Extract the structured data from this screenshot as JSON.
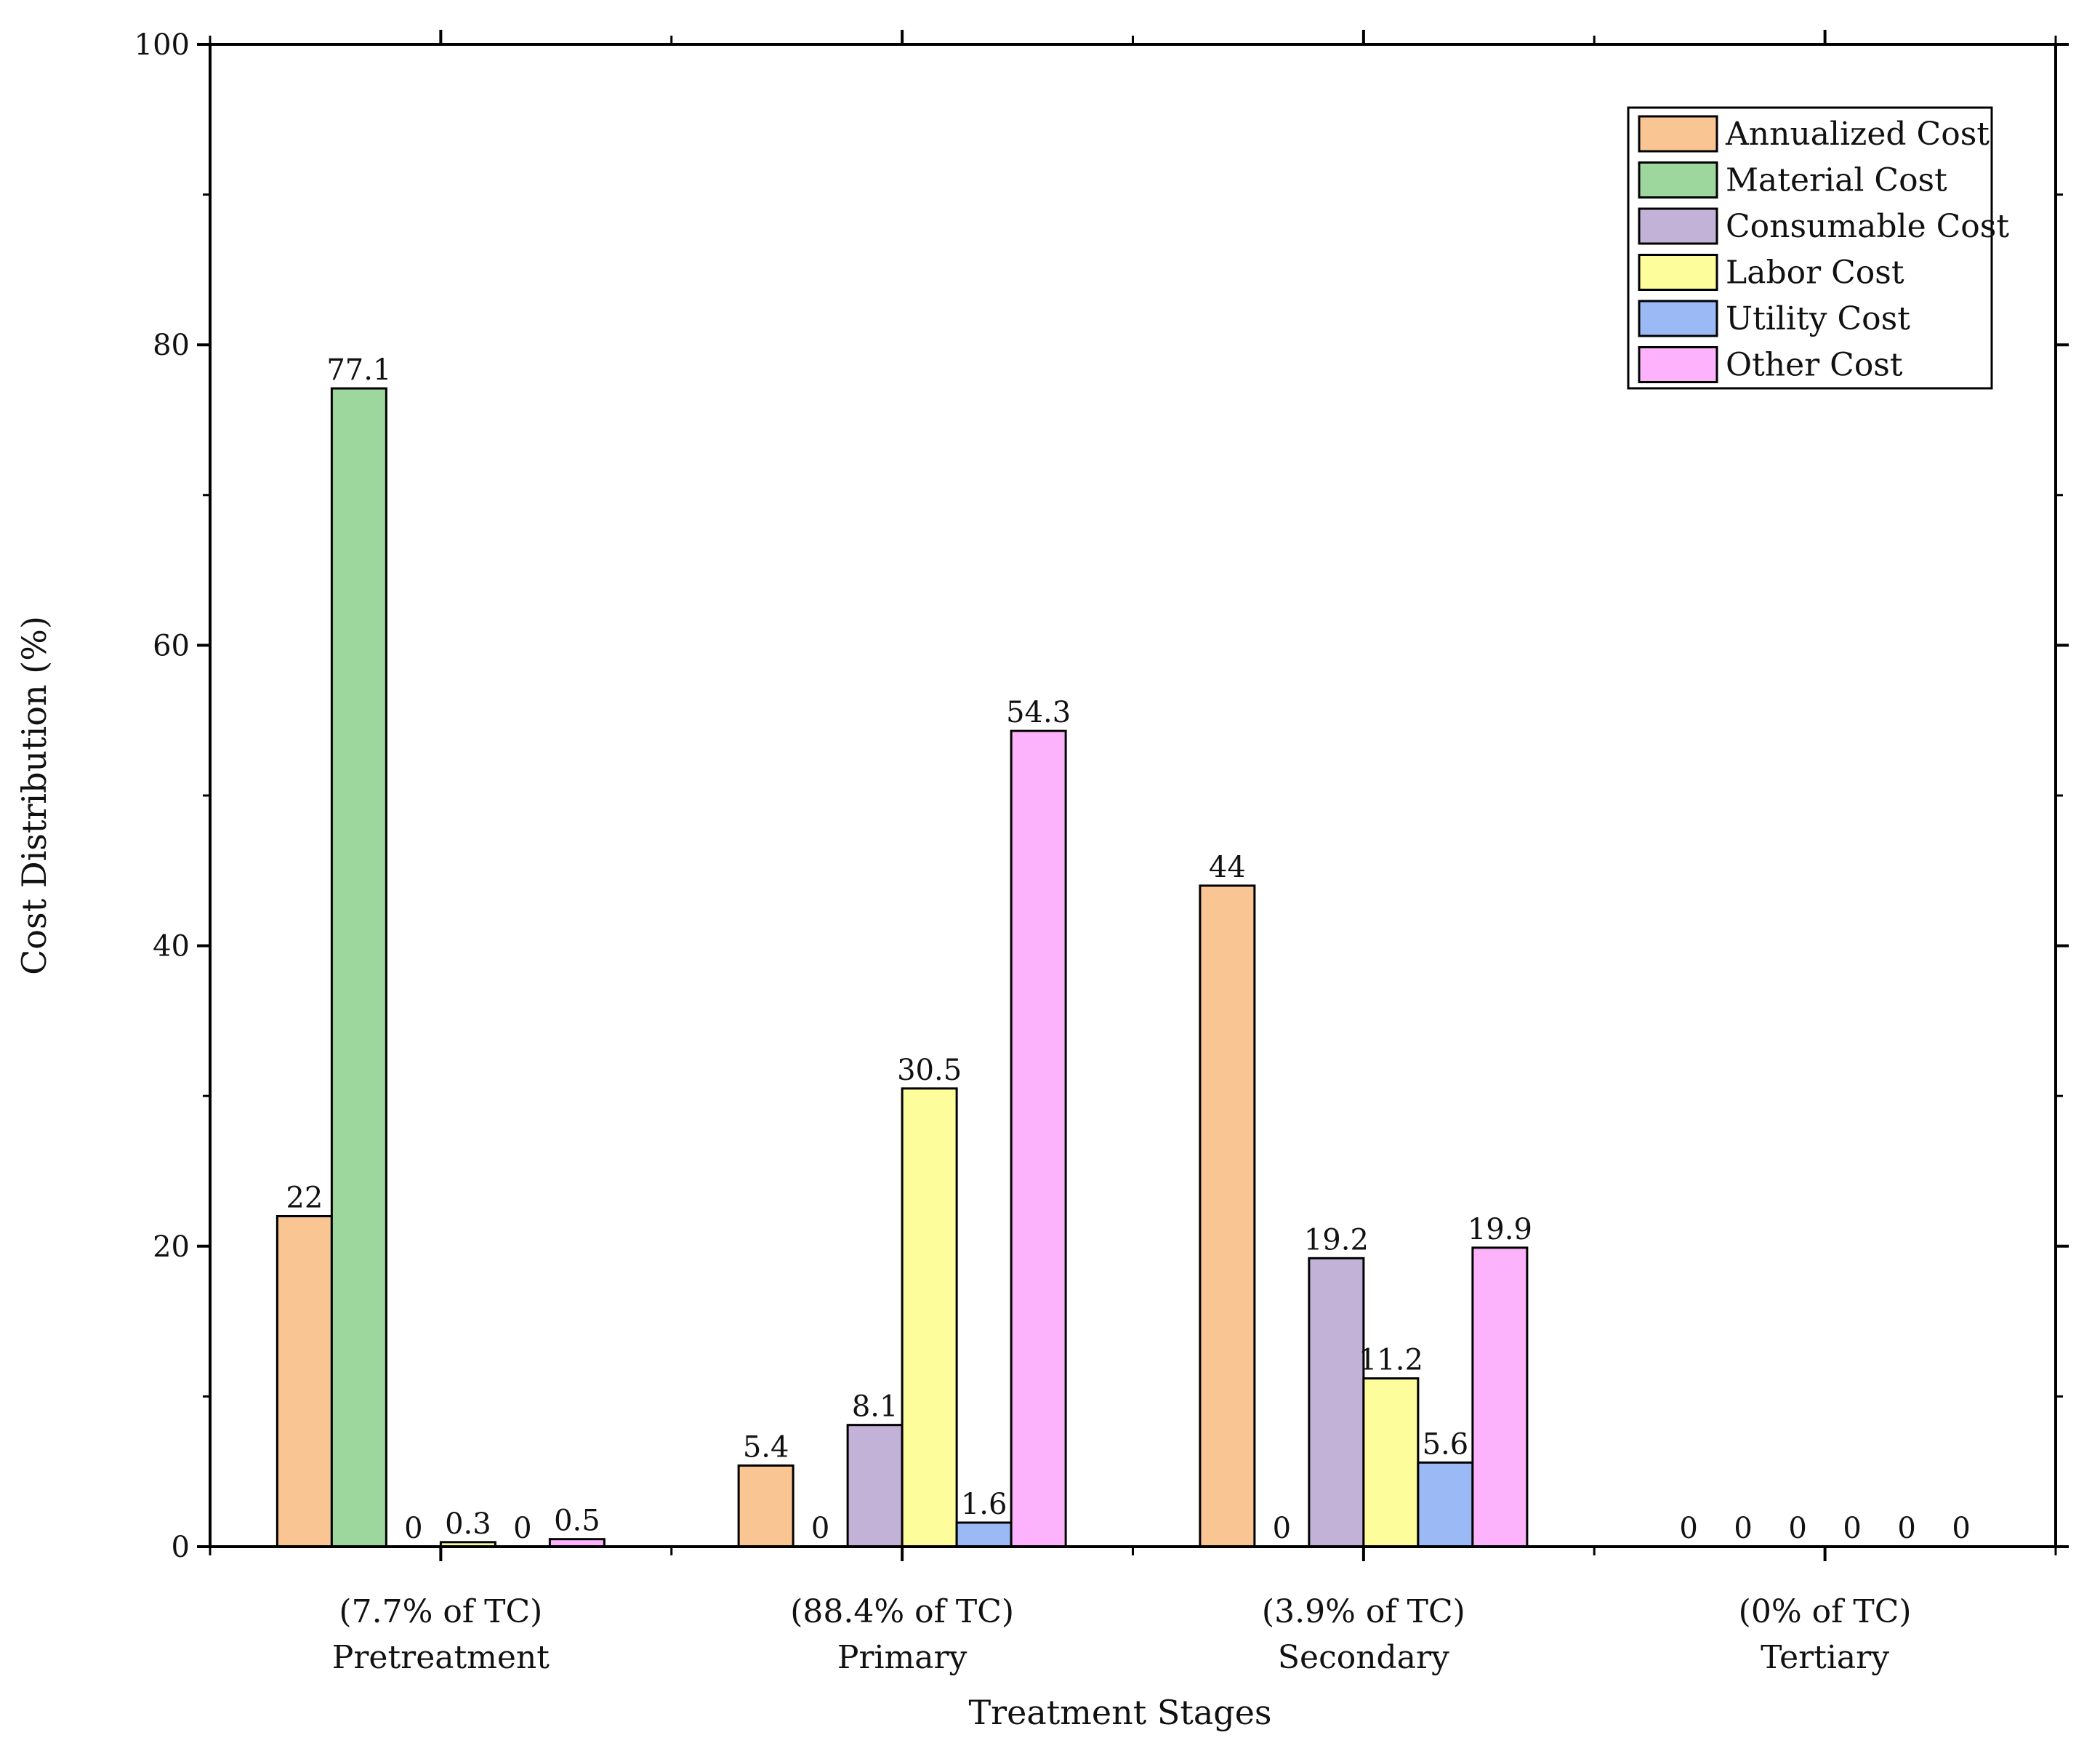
{
  "chart_data": {
    "type": "bar",
    "title": "",
    "xlabel": "Treatment Stages",
    "ylabel": "Cost Distribution (%)",
    "ylim": [
      0,
      100
    ],
    "yticks": [
      0,
      20,
      40,
      60,
      80,
      100
    ],
    "categories": [
      "Pretreatment",
      "Primary",
      "Secondary",
      "Tertiary"
    ],
    "category_sublabels": [
      "(7.7% of TC)",
      "(88.4% of TC)",
      "(3.9% of TC)",
      "(0% of TC)"
    ],
    "legend_position": "top-right",
    "series": [
      {
        "name": "Annualized Cost",
        "color": "#f8c593",
        "values": [
          22,
          5.4,
          44,
          0
        ],
        "labels": [
          "22",
          "5.4",
          "44",
          "0"
        ]
      },
      {
        "name": "Material Cost",
        "color": "#9ed79d",
        "values": [
          77.1,
          0,
          0,
          0
        ],
        "labels": [
          "77.1",
          "0",
          "0",
          "0"
        ]
      },
      {
        "name": "Consumable Cost",
        "color": "#c3b2d8",
        "values": [
          0,
          8.1,
          19.2,
          0
        ],
        "labels": [
          "0",
          "8.1",
          "19.2",
          "0"
        ]
      },
      {
        "name": "Labor Cost",
        "color": "#fdfd9b",
        "values": [
          0.3,
          30.5,
          11.2,
          0
        ],
        "labels": [
          "0.3",
          "30.5",
          "11.2",
          "0"
        ]
      },
      {
        "name": "Utility Cost",
        "color": "#9bb9f4",
        "values": [
          0,
          1.6,
          5.6,
          0
        ],
        "labels": [
          "0",
          "1.6",
          "5.6",
          "0"
        ]
      },
      {
        "name": "Other Cost",
        "color": "#fdb3fb",
        "values": [
          0.5,
          54.3,
          19.9,
          0
        ],
        "labels": [
          "0.5",
          "54.3",
          "19.9",
          "0"
        ]
      }
    ]
  }
}
